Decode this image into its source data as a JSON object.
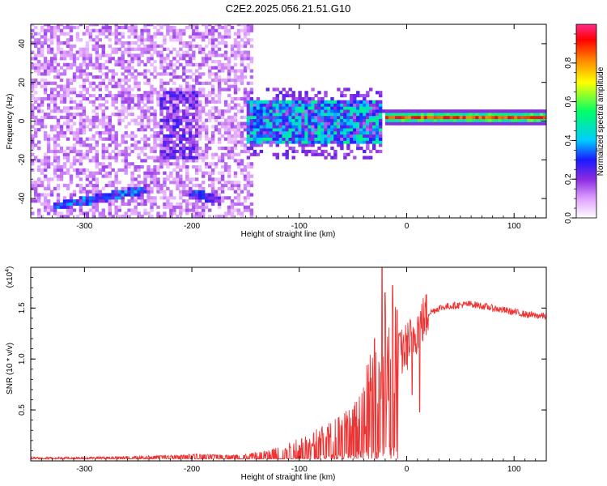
{
  "title": "C2E2.2025.056.21.51.G10",
  "chart_data": [
    {
      "type": "heatmap",
      "title": "C2E2.2025.056.21.51.G10",
      "xlabel": "Height of straight line (km)",
      "ylabel": "Frequency (Hz)",
      "xlim": [
        -350,
        130
      ],
      "ylim": [
        -50,
        50
      ],
      "x_ticks": [
        -300,
        -200,
        -100,
        0,
        100
      ],
      "x_tick_labels": [
        "-300",
        "-200",
        "-100",
        "0",
        "100"
      ],
      "y_ticks": [
        -40,
        -20,
        0,
        20,
        40
      ],
      "y_tick_labels": [
        "-40",
        "-20",
        "0",
        "20",
        "40"
      ],
      "colorbar": {
        "label": "Normalized spectral amplitude",
        "range": [
          0,
          1
        ],
        "ticks": [
          0.0,
          0.2,
          0.4,
          0.6,
          0.8
        ],
        "tick_labels": [
          "0.0",
          "0.2",
          "0.4",
          "0.6",
          "0.8"
        ],
        "colors": [
          "#ffffff",
          "#e0a0ff",
          "#8a2be2",
          "#1a1aff",
          "#00ccff",
          "#00ff66",
          "#ffff00",
          "#ff8000",
          "#ff0000",
          "#ff2a8a"
        ]
      },
      "features": [
        {
          "kind": "diffuse_noise",
          "x_range": [
            -350,
            -145
          ],
          "freq_range": [
            -50,
            50
          ],
          "amplitude": 0.12
        },
        {
          "kind": "vertical_band",
          "x_range": [
            -230,
            -195
          ],
          "freq_range": [
            -20,
            15
          ],
          "amplitude": 0.22
        },
        {
          "kind": "tone_line",
          "x_range": [
            -330,
            -245
          ],
          "freq_start": -45,
          "freq_end": -36,
          "amplitude": 0.25
        },
        {
          "kind": "tone_line",
          "x_range": [
            -205,
            -175
          ],
          "freq_start": -37,
          "freq_end": -42,
          "amplitude": 0.22
        },
        {
          "kind": "broadband_band",
          "x_range": [
            -150,
            -25
          ],
          "freq_range": [
            -12,
            10
          ],
          "amplitude": 0.35
        },
        {
          "kind": "carrier",
          "x_range": [
            -20,
            130
          ],
          "freq": 1.5,
          "amplitude": 0.95
        }
      ]
    },
    {
      "type": "line",
      "xlabel": "Height of straight line (km)",
      "ylabel": "SNR (10 * v/v)",
      "y_multiplier_label": "(x10",
      "y_multiplier_exp": "4",
      "xlim": [
        -350,
        130
      ],
      "ylim": [
        0,
        1.9
      ],
      "x_ticks": [
        -300,
        -200,
        -100,
        0,
        100
      ],
      "x_tick_labels": [
        "-300",
        "-200",
        "-100",
        "0",
        "100"
      ],
      "y_ticks": [
        0.5,
        1.0,
        1.5
      ],
      "y_tick_labels": [
        "0.5",
        "1.0",
        "1.5"
      ],
      "line_color": "#ee3333",
      "series": [
        {
          "x": [
            -350,
            -300,
            -250,
            -210,
            -200,
            -150,
            -130,
            -110,
            -90,
            -70,
            -55,
            -45,
            -38,
            -32,
            -27,
            -23,
            -20,
            -17,
            -13,
            -10,
            -5,
            0,
            10,
            20,
            30,
            40,
            60,
            80,
            100,
            115,
            130
          ],
          "y": [
            0.03,
            0.03,
            0.04,
            0.05,
            0.06,
            0.05,
            0.07,
            0.12,
            0.18,
            0.25,
            0.33,
            0.4,
            0.5,
            0.6,
            0.75,
            0.9,
            0.8,
            0.7,
            0.85,
            0.95,
            1.05,
            1.12,
            1.3,
            1.45,
            1.5,
            1.52,
            1.54,
            1.5,
            1.46,
            1.43,
            1.42
          ]
        }
      ],
      "spikes": [
        {
          "x": -23,
          "y": 1.95
        },
        {
          "x": -20,
          "y": 1.65
        },
        {
          "x": -13,
          "y": 1.72
        },
        {
          "x": -30,
          "y": 1.2
        },
        {
          "x": -7,
          "y": 1.25
        },
        {
          "x": 5,
          "y": 0.65
        },
        {
          "x": 12,
          "y": 0.48
        }
      ]
    }
  ]
}
